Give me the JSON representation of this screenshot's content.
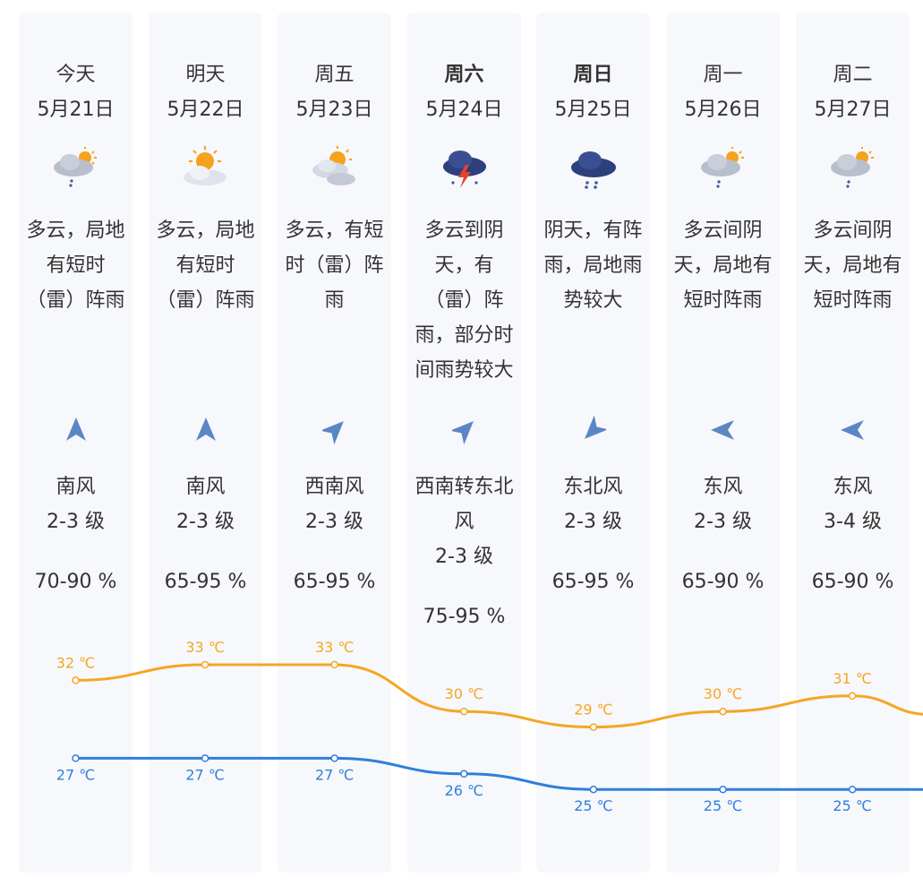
{
  "colors": {
    "high": "#f5a623",
    "low": "#2f7fdc",
    "card": "#f7f8fc",
    "text": "#333333"
  },
  "temp_unit": "℃",
  "days": [
    {
      "weekday": "今天",
      "date": "5月21日",
      "bold": false,
      "icon": "cloudy-rain-thunder-icon",
      "desc": [
        "多云，局地",
        "有短时",
        "（雷）阵雨"
      ],
      "wind_dir_icon": "wind-south-arrow-icon",
      "wind": [
        "南风"
      ],
      "wind_level": "2-3 级",
      "humidity": "70-90 %",
      "high": 32,
      "low": 27
    },
    {
      "weekday": "明天",
      "date": "5月22日",
      "bold": false,
      "icon": "sun-cloud-icon",
      "desc": [
        "多云，局地",
        "有短时",
        "（雷）阵雨"
      ],
      "wind_dir_icon": "wind-south-arrow-icon",
      "wind": [
        "南风"
      ],
      "wind_level": "2-3 级",
      "humidity": "65-95 %",
      "high": 33,
      "low": 27
    },
    {
      "weekday": "周五",
      "date": "5月23日",
      "bold": false,
      "icon": "sun-cloudy-icon",
      "desc": [
        "多云，有短",
        "时（雷）阵",
        "雨"
      ],
      "wind_dir_icon": "wind-southwest-arrow-icon",
      "wind": [
        "西南风"
      ],
      "wind_level": "2-3 级",
      "humidity": "65-95 %",
      "high": 33,
      "low": 27
    },
    {
      "weekday": "周六",
      "date": "5月24日",
      "bold": true,
      "icon": "thunderstorm-icon",
      "desc": [
        "多云到阴",
        "天，有",
        "（雷）阵",
        "雨，部分时",
        "间雨势较大"
      ],
      "wind_dir_icon": "wind-southwest-arrow-icon",
      "wind": [
        "西南转东北",
        "风"
      ],
      "wind_level": "2-3 级",
      "humidity": "75-95 %",
      "high": 30,
      "low": 26
    },
    {
      "weekday": "周日",
      "date": "5月25日",
      "bold": true,
      "icon": "heavy-rain-cloud-icon",
      "desc": [
        "阴天，有阵",
        "雨，局地雨",
        "势较大"
      ],
      "wind_dir_icon": "wind-northeast-arrow-icon",
      "wind": [
        "东北风"
      ],
      "wind_level": "2-3 级",
      "humidity": "65-95 %",
      "high": 29,
      "low": 25
    },
    {
      "weekday": "周一",
      "date": "5月26日",
      "bold": false,
      "icon": "cloudy-rain-icon",
      "desc": [
        "多云间阴",
        "天，局地有",
        "短时阵雨"
      ],
      "wind_dir_icon": "wind-east-arrow-icon",
      "wind": [
        "东风"
      ],
      "wind_level": "2-3 级",
      "humidity": "65-90 %",
      "high": 30,
      "low": 25
    },
    {
      "weekday": "周二",
      "date": "5月27日",
      "bold": false,
      "icon": "cloudy-rain-icon",
      "desc": [
        "多云间阴",
        "天，局地有",
        "短时阵雨"
      ],
      "wind_dir_icon": "wind-east-arrow-icon",
      "wind": [
        "东风"
      ],
      "wind_level": "3-4 级",
      "humidity": "65-90 %",
      "high": 31,
      "low": 25
    }
  ]
}
